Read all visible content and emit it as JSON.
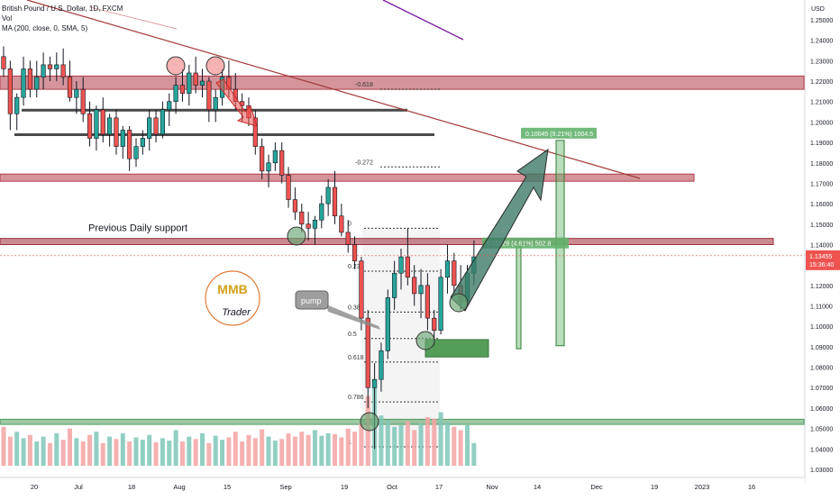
{
  "header": {
    "title": "British Pound / U.S. Dollar, 1D, FXCM",
    "line2": "Vol",
    "line3": "MA (200, close, 0, SMA, 5)"
  },
  "currency": "USD",
  "price_tag": {
    "price": "1.13455",
    "countdown": "15:36:40",
    "value": 1.13455
  },
  "chart_data": {
    "type": "candlestick",
    "symbol": "GBPUSD",
    "interval": "1D",
    "y_axis": {
      "ticks": [
        1.25,
        1.24,
        1.23,
        1.22,
        1.21,
        1.2,
        1.19,
        1.18,
        1.17,
        1.16,
        1.15,
        1.14,
        1.13,
        1.12,
        1.11,
        1.1,
        1.09,
        1.08,
        1.07,
        1.06,
        1.05,
        1.04,
        1.03
      ],
      "tick_labels": [
        "1.25000",
        "1.24000",
        "1.23000",
        "1.22000",
        "1.21000",
        "1.20000",
        "1.19000",
        "1.18000",
        "1.17000",
        "1.16000",
        "1.15000",
        "1.14000",
        "1.13000",
        "1.12000",
        "1.11000",
        "1.10000",
        "1.09000",
        "1.08000",
        "1.07000",
        "1.06000",
        "1.05000",
        "1.04000",
        "1.03000"
      ]
    },
    "x_axis": {
      "labels": [
        "20",
        "Jul",
        "18",
        "Aug",
        "15",
        "Sep",
        "19",
        "Oct",
        "17",
        "Nov",
        "14",
        "Dec",
        "19",
        "2023",
        "16"
      ]
    },
    "candles": [
      [
        1.232,
        1.237,
        1.222,
        1.226
      ],
      [
        1.226,
        1.23,
        1.196,
        1.204
      ],
      [
        1.204,
        1.214,
        1.196,
        1.212
      ],
      [
        1.212,
        1.232,
        1.208,
        1.226
      ],
      [
        1.226,
        1.23,
        1.212,
        1.216
      ],
      [
        1.216,
        1.23,
        1.212,
        1.222
      ],
      [
        1.222,
        1.234,
        1.216,
        1.228
      ],
      [
        1.228,
        1.232,
        1.22,
        1.226
      ],
      [
        1.226,
        1.234,
        1.22,
        1.228
      ],
      [
        1.228,
        1.236,
        1.218,
        1.222
      ],
      [
        1.222,
        1.23,
        1.21,
        1.212
      ],
      [
        1.212,
        1.22,
        1.204,
        1.216
      ],
      [
        1.216,
        1.222,
        1.2,
        1.204
      ],
      [
        1.204,
        1.21,
        1.188,
        1.192
      ],
      [
        1.192,
        1.208,
        1.186,
        1.206
      ],
      [
        1.206,
        1.212,
        1.19,
        1.194
      ],
      [
        1.194,
        1.204,
        1.188,
        1.202
      ],
      [
        1.202,
        1.206,
        1.184,
        1.188
      ],
      [
        1.188,
        1.198,
        1.182,
        1.196
      ],
      [
        1.196,
        1.198,
        1.176,
        1.182
      ],
      [
        1.182,
        1.192,
        1.178,
        1.188
      ],
      [
        1.188,
        1.196,
        1.184,
        1.192
      ],
      [
        1.192,
        1.206,
        1.186,
        1.202
      ],
      [
        1.202,
        1.206,
        1.19,
        1.194
      ],
      [
        1.194,
        1.21,
        1.192,
        1.206
      ],
      [
        1.206,
        1.214,
        1.198,
        1.21
      ],
      [
        1.21,
        1.222,
        1.204,
        1.218
      ],
      [
        1.218,
        1.226,
        1.21,
        1.214
      ],
      [
        1.214,
        1.228,
        1.208,
        1.224
      ],
      [
        1.224,
        1.232,
        1.214,
        1.218
      ],
      [
        1.218,
        1.226,
        1.212,
        1.22
      ],
      [
        1.22,
        1.222,
        1.2,
        1.206
      ],
      [
        1.206,
        1.216,
        1.2,
        1.212
      ],
      [
        1.212,
        1.226,
        1.208,
        1.222
      ],
      [
        1.222,
        1.23,
        1.212,
        1.216
      ],
      [
        1.216,
        1.224,
        1.206,
        1.21
      ],
      [
        1.21,
        1.214,
        1.2,
        1.208
      ],
      [
        1.208,
        1.212,
        1.198,
        1.202
      ],
      [
        1.202,
        1.206,
        1.184,
        1.188
      ],
      [
        1.188,
        1.192,
        1.172,
        1.176
      ],
      [
        1.176,
        1.184,
        1.168,
        1.18
      ],
      [
        1.18,
        1.19,
        1.176,
        1.186
      ],
      [
        1.186,
        1.19,
        1.17,
        1.174
      ],
      [
        1.174,
        1.178,
        1.158,
        1.162
      ],
      [
        1.162,
        1.168,
        1.152,
        1.156
      ],
      [
        1.156,
        1.16,
        1.146,
        1.15
      ],
      [
        1.15,
        1.156,
        1.142,
        1.148
      ],
      [
        1.148,
        1.154,
        1.14,
        1.152
      ],
      [
        1.152,
        1.164,
        1.148,
        1.16
      ],
      [
        1.16,
        1.172,
        1.154,
        1.168
      ],
      [
        1.168,
        1.176,
        1.15,
        1.154
      ],
      [
        1.154,
        1.16,
        1.144,
        1.146
      ],
      [
        1.146,
        1.152,
        1.136,
        1.14
      ],
      [
        1.14,
        1.144,
        1.128,
        1.132
      ],
      [
        1.132,
        1.134,
        1.098,
        1.104
      ],
      [
        1.104,
        1.108,
        1.06,
        1.07
      ],
      [
        1.07,
        1.082,
        1.04,
        1.074
      ],
      [
        1.074,
        1.092,
        1.068,
        1.088
      ],
      [
        1.088,
        1.118,
        1.084,
        1.114
      ],
      [
        1.114,
        1.132,
        1.108,
        1.126
      ],
      [
        1.126,
        1.138,
        1.118,
        1.134
      ],
      [
        1.134,
        1.148,
        1.12,
        1.124
      ],
      [
        1.124,
        1.13,
        1.11,
        1.116
      ],
      [
        1.116,
        1.128,
        1.104,
        1.12
      ],
      [
        1.12,
        1.126,
        1.098,
        1.104
      ],
      [
        1.104,
        1.108,
        1.09,
        1.098
      ],
      [
        1.098,
        1.128,
        1.096,
        1.124
      ],
      [
        1.124,
        1.14,
        1.116,
        1.132
      ],
      [
        1.132,
        1.136,
        1.116,
        1.12
      ],
      [
        1.12,
        1.13,
        1.108,
        1.112
      ],
      [
        1.112,
        1.13,
        1.11,
        1.126
      ],
      [
        1.126,
        1.142,
        1.12,
        1.134
      ]
    ],
    "volume": [
      0.48,
      0.36,
      0.42,
      0.34,
      0.38,
      0.3,
      0.36,
      0.28,
      0.4,
      0.32,
      0.46,
      0.34,
      0.3,
      0.38,
      0.42,
      0.28,
      0.36,
      0.33,
      0.4,
      0.3,
      0.35,
      0.32,
      0.38,
      0.29,
      0.34,
      0.31,
      0.44,
      0.3,
      0.36,
      0.33,
      0.4,
      0.28,
      0.37,
      0.32,
      0.35,
      0.42,
      0.3,
      0.38,
      0.34,
      0.45,
      0.36,
      0.31,
      0.33,
      0.4,
      0.36,
      0.42,
      0.38,
      0.44,
      0.37,
      0.4,
      0.39,
      0.35,
      0.46,
      0.42,
      0.52,
      0.86,
      0.98,
      0.62,
      0.56,
      0.48,
      0.5,
      0.55,
      0.44,
      0.52,
      0.6,
      0.58,
      0.66,
      0.54,
      0.48,
      0.44,
      0.5,
      0.28
    ],
    "moving_average_200": [
      [
        1.255,
        1.248
      ],
      [
        1.25,
        1.24
      ]
    ],
    "horizontal_zones": [
      {
        "label": "",
        "top": 1.2225,
        "bottom": 1.216,
        "color": "#b33c48"
      },
      {
        "label": "",
        "top": 1.1745,
        "bottom": 1.171,
        "color": "#b33c48"
      },
      {
        "label": "Previous Daily support",
        "top": 1.143,
        "bottom": 1.14,
        "color": "#9c2c38"
      },
      {
        "label": "",
        "top": 1.0545,
        "bottom": 1.052,
        "color": "#4f9a5c"
      }
    ],
    "resistance_lines": [
      1.206,
      1.194
    ],
    "fib_levels": [
      {
        "label": "-0.618",
        "value": 1.216
      },
      {
        "label": "-0.272",
        "value": 1.178
      },
      {
        "label": "0",
        "value": 1.148
      },
      {
        "label": "0.236",
        "value": 1.127
      },
      {
        "label": "0.382",
        "value": 1.107
      },
      {
        "label": "0.5",
        "value": 1.094
      },
      {
        "label": "0.618",
        "value": 1.0825
      },
      {
        "label": "0.786",
        "value": 1.063
      },
      {
        "label": "1",
        "value": 1.041
      }
    ],
    "measurements": [
      {
        "label": "0.05028 (4.61%) 502.8",
        "top": 1.139,
        "bottom": 1.089
      },
      {
        "label": "0.10045 (9.21%) 1004.5",
        "top": 1.191,
        "bottom": 1.0905
      }
    ],
    "long_target_box": {
      "top": 1.0935,
      "bottom": 1.085
    },
    "annotations": {
      "callout": "pump"
    },
    "logo": {
      "line1": "MMB",
      "line2": "Trader"
    }
  }
}
